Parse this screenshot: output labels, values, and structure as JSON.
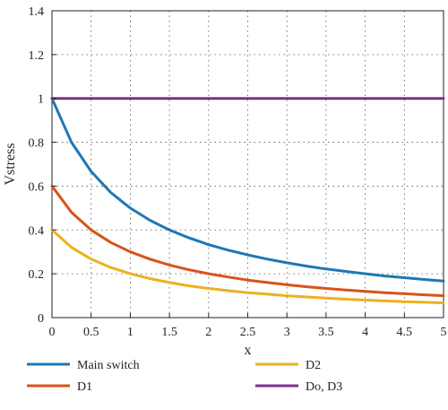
{
  "chart_data": {
    "type": "line",
    "xlabel": "x",
    "ylabel": "Vstress",
    "xlim": [
      0,
      5
    ],
    "ylim": [
      0,
      1.4
    ],
    "x_ticks": [
      "0",
      "0.5",
      "1",
      "1.5",
      "2",
      "2.5",
      "3",
      "3.5",
      "4",
      "4.5",
      "5"
    ],
    "y_ticks": [
      "0",
      "0.2",
      "0.4",
      "0.6",
      "0.8",
      "1",
      "1.2",
      "1.4"
    ],
    "grid": true,
    "legend_position": "bottom",
    "x": [
      0,
      0.25,
      0.5,
      0.75,
      1,
      1.25,
      1.5,
      1.75,
      2,
      2.25,
      2.5,
      2.75,
      3,
      3.25,
      3.5,
      3.75,
      4,
      4.25,
      4.5,
      4.75,
      5
    ],
    "series": [
      {
        "name": "Main switch",
        "color": "#1f77b4",
        "values": [
          1.0,
          0.8,
          0.667,
          0.571,
          0.5,
          0.444,
          0.4,
          0.364,
          0.333,
          0.308,
          0.286,
          0.267,
          0.25,
          0.235,
          0.222,
          0.211,
          0.2,
          0.19,
          0.182,
          0.174,
          0.167
        ]
      },
      {
        "name": "D1",
        "color": "#d95319",
        "values": [
          0.6,
          0.48,
          0.4,
          0.343,
          0.3,
          0.267,
          0.24,
          0.218,
          0.2,
          0.185,
          0.171,
          0.16,
          0.15,
          0.141,
          0.133,
          0.126,
          0.12,
          0.114,
          0.109,
          0.104,
          0.1
        ]
      },
      {
        "name": "D2",
        "color": "#edb120",
        "values": [
          0.4,
          0.32,
          0.267,
          0.229,
          0.2,
          0.178,
          0.16,
          0.145,
          0.133,
          0.123,
          0.114,
          0.107,
          0.1,
          0.094,
          0.089,
          0.084,
          0.08,
          0.076,
          0.073,
          0.07,
          0.067
        ]
      },
      {
        "name": "Do, D3",
        "color": "#7e2f8e",
        "values": [
          1,
          1,
          1,
          1,
          1,
          1,
          1,
          1,
          1,
          1,
          1,
          1,
          1,
          1,
          1,
          1,
          1,
          1,
          1,
          1,
          1
        ]
      }
    ]
  }
}
